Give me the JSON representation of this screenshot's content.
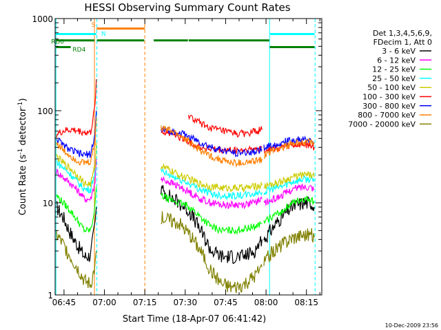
{
  "chart_data": {
    "type": "line",
    "title": "HESSI Observing Summary Count Rates",
    "xlabel": "Start Time (18-Apr-07 06:41:42)",
    "ylabel_main": "Count Rate (s",
    "ylabel_sup1": "-1",
    "ylabel_mid": " detector",
    "ylabel_sup2": "-1",
    "ylabel_end": ")",
    "yscale": "log",
    "ylim": [
      1,
      1000
    ],
    "xlim_minutes": [
      0,
      99
    ],
    "x_ticks": [
      {
        "label": "06:45",
        "minutes": 3.3
      },
      {
        "label": "07:00",
        "minutes": 18.3
      },
      {
        "label": "07:15",
        "minutes": 33.3
      },
      {
        "label": "07:30",
        "minutes": 48.3
      },
      {
        "label": "07:45",
        "minutes": 63.3
      },
      {
        "label": "08:00",
        "minutes": 78.3
      },
      {
        "label": "08:15",
        "minutes": 93.3
      }
    ],
    "y_ticks": [
      {
        "label": "1",
        "value": 1
      },
      {
        "label": "10",
        "value": 10
      },
      {
        "label": "100",
        "value": 100
      },
      {
        "label": "1000",
        "value": 1000
      }
    ],
    "legend": {
      "placement": "right",
      "header": [
        "Det 1,3,4,5,6,9,",
        "FDecim 1, Att 0"
      ],
      "entries": [
        {
          "label": "3 - 6 keV",
          "color": "#000000"
        },
        {
          "label": "6 - 12 keV",
          "color": "#ff00ff"
        },
        {
          "label": "12 - 25 keV",
          "color": "#00ff00"
        },
        {
          "label": "25 - 50 keV",
          "color": "#00ffff"
        },
        {
          "label": "50 - 100 keV",
          "color": "#cccc00"
        },
        {
          "label": "100 - 300 keV",
          "color": "#ff0000"
        },
        {
          "label": "300 - 800 keV",
          "color": "#0000ff"
        },
        {
          "label": "800 - 7000 keV",
          "color": "#ff8000"
        },
        {
          "label": "7000 - 20000 keV",
          "color": "#808000"
        }
      ]
    },
    "series": [
      {
        "name": "3 - 6 keV",
        "color": "#000000",
        "segments": [
          {
            "x": [
              0.5,
              3,
              6,
              9,
              11,
              13.2,
              14.8,
              15.3
            ],
            "y": [
              9,
              7,
              4.5,
              3.2,
              2.6,
              2.7,
              6,
              9
            ]
          },
          {
            "x": [
              39.3,
              42,
              46,
              50,
              54,
              58,
              62,
              66,
              70,
              74,
              76.8
            ],
            "y": [
              14,
              12,
              10,
              8,
              5,
              3,
              2.6,
              2.6,
              2.6,
              3,
              4
            ]
          },
          {
            "x": [
              77.5,
              80,
              84,
              88,
              92,
              95,
              96.2
            ],
            "y": [
              4,
              5,
              7,
              9,
              10,
              10,
              9
            ]
          }
        ]
      },
      {
        "name": "6 - 12 keV",
        "color": "#ff00ff",
        "segments": [
          {
            "x": [
              0.5,
              3,
              6,
              9,
              11,
              13.2,
              14.8,
              15.3
            ],
            "y": [
              22,
              19,
              16,
              13,
              11,
              11,
              17,
              30
            ]
          },
          {
            "x": [
              39.3,
              42,
              46,
              50,
              54,
              58,
              62,
              66,
              70,
              74,
              76.8
            ],
            "y": [
              18,
              17,
              15,
              13,
              11,
              10,
              9.5,
              9.5,
              9.6,
              10,
              11
            ]
          },
          {
            "x": [
              77.5,
              80,
              84,
              88,
              92,
              95,
              96.2
            ],
            "y": [
              10,
              10.5,
              12,
              14,
              15,
              15,
              14
            ]
          }
        ]
      },
      {
        "name": "12 - 25 keV",
        "color": "#00ff00",
        "segments": [
          {
            "x": [
              0.5,
              3,
              6,
              9,
              11,
              13.2,
              14.8,
              15.3
            ],
            "y": [
              12,
              10,
              8,
              6,
              5,
              5,
              9,
              15
            ]
          },
          {
            "x": [
              39.3,
              42,
              46,
              50,
              54,
              58,
              62,
              66,
              70,
              74,
              76.8
            ],
            "y": [
              12,
              11,
              10,
              9,
              7,
              5.5,
              5,
              5,
              5.2,
              5.5,
              6
            ]
          },
          {
            "x": [
              77.5,
              80,
              84,
              88,
              92,
              95,
              96.2
            ],
            "y": [
              6,
              7,
              8,
              10,
              11,
              11,
              10
            ]
          }
        ]
      },
      {
        "name": "25 - 50 keV",
        "color": "#00ffff",
        "segments": [
          {
            "x": [
              0.5,
              3,
              6,
              9,
              11,
              13.2,
              14.8,
              15.3
            ],
            "y": [
              28,
              24,
              20,
              16,
              14,
              14,
              22,
              40
            ]
          },
          {
            "x": [
              39.3,
              42,
              46,
              50,
              54,
              58,
              62,
              66,
              70,
              74,
              76.8
            ],
            "y": [
              22,
              20,
              18,
              16,
              14,
              12.5,
              12,
              12,
              12,
              12.5,
              13
            ]
          },
          {
            "x": [
              77.5,
              80,
              84,
              88,
              92,
              95,
              96.2
            ],
            "y": [
              13,
              14,
              15,
              17,
              18,
              18,
              17
            ]
          }
        ]
      },
      {
        "name": "50 - 100 keV",
        "color": "#cccc00",
        "segments": [
          {
            "x": [
              0.5,
              3,
              6,
              9,
              11,
              13.2,
              14.8,
              15.3
            ],
            "y": [
              32,
              27,
              23,
              19,
              16,
              16,
              25,
              45
            ]
          },
          {
            "x": [
              39.3,
              42,
              46,
              50,
              54,
              58,
              62,
              66,
              70,
              74,
              76.8
            ],
            "y": [
              25,
              23,
              20,
              18,
              16,
              15,
              14.5,
              14.5,
              14.5,
              15,
              15.5
            ]
          },
          {
            "x": [
              77.5,
              80,
              84,
              88,
              92,
              95,
              96.2
            ],
            "y": [
              15,
              16,
              17,
              19,
              20,
              20,
              19
            ]
          }
        ]
      },
      {
        "name": "100 - 300 keV",
        "color": "#ff0000",
        "segments": [
          {
            "x": [
              0.5,
              3,
              6,
              9,
              11,
              13.2,
              14.8,
              15.3
            ],
            "y": [
              55,
              60,
              62,
              60,
              58,
              58,
              110,
              220
            ]
          },
          {
            "x": [
              39.3,
              42,
              46,
              50,
              54,
              58,
              62,
              66,
              70,
              74,
              76.8
            ],
            "y": [
              60,
              58,
              52,
              45,
              40,
              38,
              37,
              37,
              37,
              38,
              40
            ]
          },
          {
            "x": [
              49.5,
              52,
              56,
              60,
              64,
              68,
              72,
              76.8
            ],
            "y": [
              88,
              78,
              68,
              62,
              58,
              56,
              57,
              62
            ]
          },
          {
            "x": [
              77.5,
              80,
              84,
              88,
              92,
              95,
              96.2
            ],
            "y": [
              38,
              38,
              40,
              42,
              43,
              42,
              40
            ]
          }
        ]
      },
      {
        "name": "300 - 800 keV",
        "color": "#0000ff",
        "segments": [
          {
            "x": [
              0.5,
              3,
              6,
              9,
              11,
              13.2,
              14.8,
              15.3
            ],
            "y": [
              50,
              42,
              37,
              34,
              33,
              34,
              55,
              100
            ]
          },
          {
            "x": [
              39.3,
              42,
              46,
              50,
              54,
              58,
              62,
              66,
              70,
              74,
              76.8
            ],
            "y": [
              62,
              60,
              58,
              52,
              45,
              40,
              37,
              35,
              35,
              36,
              38
            ]
          },
          {
            "x": [
              77.5,
              80,
              84,
              88,
              92,
              95,
              96.2
            ],
            "y": [
              40,
              42,
              45,
              48,
              48,
              47,
              45
            ]
          }
        ]
      },
      {
        "name": "800 - 7000 keV",
        "color": "#ff8000",
        "segments": [
          {
            "x": [
              0.5,
              3,
              6,
              9,
              11,
              13.2,
              14.8,
              15.3
            ],
            "y": [
              45,
              37,
              32,
              28,
              27,
              28,
              45,
              85
            ]
          },
          {
            "x": [
              39.3,
              42,
              46,
              50,
              54,
              58,
              62,
              66,
              70,
              74,
              76.8
            ],
            "y": [
              65,
              62,
              55,
              45,
              37,
              32,
              29,
              27,
              27,
              28,
              30
            ]
          },
          {
            "x": [
              77.5,
              80,
              84,
              88,
              92,
              95,
              96.2
            ],
            "y": [
              33,
              36,
              40,
              44,
              46,
              45,
              43
            ]
          }
        ]
      },
      {
        "name": "7000 - 20000 keV",
        "color": "#808000",
        "segments": [
          {
            "x": [
              0.5,
              3,
              6,
              9,
              11,
              13.2,
              14.8,
              15.3
            ],
            "y": [
              4.5,
              3.5,
              2.5,
              1.8,
              1.4,
              1.3,
              2,
              3
            ]
          },
          {
            "x": [
              39.3,
              42,
              46,
              50,
              54,
              58,
              62,
              66,
              70,
              74,
              76.8
            ],
            "y": [
              7,
              6.5,
              6,
              4.5,
              3,
              1.8,
              1.3,
              1.2,
              1.3,
              1.6,
              2
            ]
          },
          {
            "x": [
              77.5,
              80,
              84,
              88,
              92,
              95,
              96.2
            ],
            "y": [
              2.2,
              2.8,
              3.5,
              4.2,
              4.5,
              4.5,
              4.2
            ]
          }
        ]
      }
    ],
    "annotations": [
      {
        "label": "S",
        "color": "#ff8000",
        "x_minutes": 13.5,
        "value": 870
      },
      {
        "label": "N",
        "color": "#00ffff",
        "x_minutes": 17.1,
        "value": 700
      },
      {
        "label": "RD0",
        "color": "#008000",
        "x_minutes": -1.5,
        "value": 570
      },
      {
        "label": "RD4",
        "color": "#008000",
        "x_minutes": 6.5,
        "value": 470
      }
    ],
    "flag_bars": [
      {
        "color": "#ff8000",
        "value": 780,
        "ranges": [
          [
            15.4,
            33.3
          ]
        ]
      },
      {
        "color": "#00ffff",
        "value": 680,
        "ranges": [
          [
            0.3,
            15.3
          ],
          [
            79.8,
            96.3
          ]
        ]
      },
      {
        "color": "#008000",
        "value": 580,
        "ranges": [
          [
            0.3,
            14.6
          ],
          [
            15.5,
            33.1
          ],
          [
            36.6,
            49.3
          ],
          [
            49.6,
            79.5
          ]
        ]
      },
      {
        "color": "#008000",
        "value": 490,
        "ranges": [
          [
            0.3,
            5.8
          ],
          [
            79.7,
            96.3
          ]
        ]
      }
    ],
    "vertical_markers": [
      {
        "color": "#00ffff",
        "style": "solid",
        "x_minutes": 0.3
      },
      {
        "color": "#00ffff",
        "style": "dashed",
        "x_minutes": 15.5
      },
      {
        "color": "#ff8000",
        "style": "solid",
        "x_minutes": 14.6
      },
      {
        "color": "#ff8000",
        "style": "dashed",
        "x_minutes": 33.3
      },
      {
        "color": "#00ffff",
        "style": "solid",
        "x_minutes": 79.6
      },
      {
        "color": "#00ffff",
        "style": "dashed",
        "x_minutes": 96.5
      }
    ],
    "footer_date": "10-Dec-2009 23:56"
  }
}
